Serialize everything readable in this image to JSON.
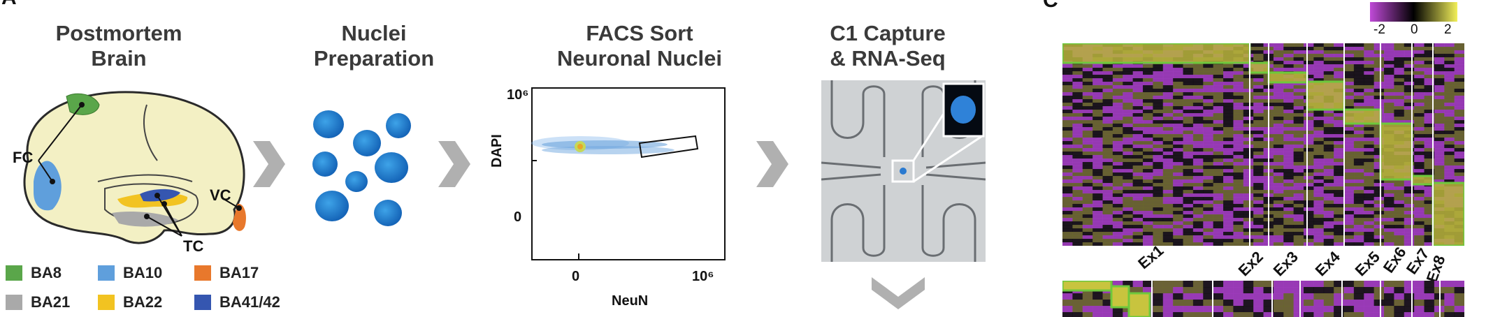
{
  "panel_letters": {
    "a": "A",
    "c": "C"
  },
  "steps": {
    "brain": {
      "line1": "Postmortem",
      "line2": "Brain"
    },
    "nuclei": {
      "line1": "Nuclei",
      "line2": "Preparation"
    },
    "facs": {
      "line1": "FACS Sort",
      "line2": "Neuronal Nuclei"
    },
    "c1": {
      "line1": "C1 Capture",
      "line2": "& RNA-Seq"
    }
  },
  "brain_labels": {
    "fc": "FC",
    "vc": "VC",
    "tc": "TC"
  },
  "legend": [
    {
      "label": "BA8",
      "color": "#5aa64a"
    },
    {
      "label": "BA10",
      "color": "#5f9fdc"
    },
    {
      "label": "BA17",
      "color": "#e8782c"
    },
    {
      "label": "BA21",
      "color": "#a9a9a9"
    },
    {
      "label": "BA22",
      "color": "#f2c321"
    },
    {
      "label": "BA41/42",
      "color": "#3556b0"
    }
  ],
  "facs_plot": {
    "ylabel": "DAPI",
    "xlabel": "NeuN",
    "y_ticks": [
      "10⁶",
      "0"
    ],
    "x_ticks": [
      "0",
      "10⁶"
    ]
  },
  "heatmap": {
    "colorbar_ticks": [
      "-2",
      "0",
      "2"
    ],
    "colors": {
      "low": "#a03cbf",
      "mid": "#111111",
      "high": "#e6e64a",
      "frame": "#6ec83c"
    },
    "clusters": [
      "Ex1",
      "Ex2",
      "Ex3",
      "Ex4",
      "Ex5",
      "Ex6",
      "Ex7",
      "Ex8"
    ]
  }
}
